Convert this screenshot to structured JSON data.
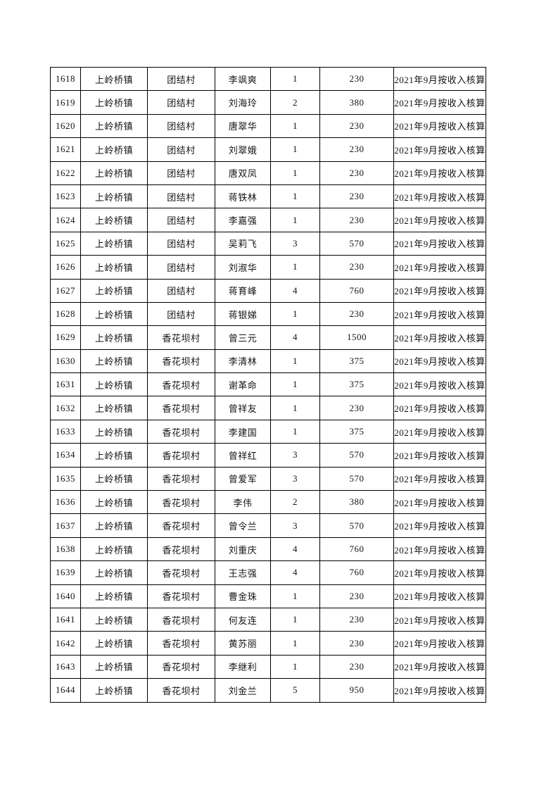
{
  "page": {
    "background_color": "#ffffff",
    "text_color": "#141414",
    "table_border_color": "#000000"
  },
  "table": {
    "column_semantic_names": [
      "row-id-cell",
      "town-cell",
      "village-cell",
      "person-name-cell",
      "person-count-cell",
      "amount-cell",
      "note-cell"
    ],
    "rows": [
      [
        "1618",
        "上岭桥镇",
        "团结村",
        "李飒爽",
        "1",
        "230",
        "2021年9月按收入核算"
      ],
      [
        "1619",
        "上岭桥镇",
        "团结村",
        "刘海玲",
        "2",
        "380",
        "2021年9月按收入核算"
      ],
      [
        "1620",
        "上岭桥镇",
        "团结村",
        "唐翠华",
        "1",
        "230",
        "2021年9月按收入核算"
      ],
      [
        "1621",
        "上岭桥镇",
        "团结村",
        "刘翠娥",
        "1",
        "230",
        "2021年9月按收入核算"
      ],
      [
        "1622",
        "上岭桥镇",
        "团结村",
        "唐双凤",
        "1",
        "230",
        "2021年9月按收入核算"
      ],
      [
        "1623",
        "上岭桥镇",
        "团结村",
        "蒋铁林",
        "1",
        "230",
        "2021年9月按收入核算"
      ],
      [
        "1624",
        "上岭桥镇",
        "团结村",
        "李嘉强",
        "1",
        "230",
        "2021年9月按收入核算"
      ],
      [
        "1625",
        "上岭桥镇",
        "团结村",
        "吴莉飞",
        "3",
        "570",
        "2021年9月按收入核算"
      ],
      [
        "1626",
        "上岭桥镇",
        "团结村",
        "刘淑华",
        "1",
        "230",
        "2021年9月按收入核算"
      ],
      [
        "1627",
        "上岭桥镇",
        "团结村",
        "蒋育峰",
        "4",
        "760",
        "2021年9月按收入核算"
      ],
      [
        "1628",
        "上岭桥镇",
        "团结村",
        "蒋银娣",
        "1",
        "230",
        "2021年9月按收入核算"
      ],
      [
        "1629",
        "上岭桥镇",
        "香花坝村",
        "曾三元",
        "4",
        "1500",
        "2021年9月按收入核算"
      ],
      [
        "1630",
        "上岭桥镇",
        "香花坝村",
        "李清林",
        "1",
        "375",
        "2021年9月按收入核算"
      ],
      [
        "1631",
        "上岭桥镇",
        "香花坝村",
        "谢革命",
        "1",
        "375",
        "2021年9月按收入核算"
      ],
      [
        "1632",
        "上岭桥镇",
        "香花坝村",
        "曾祥友",
        "1",
        "230",
        "2021年9月按收入核算"
      ],
      [
        "1633",
        "上岭桥镇",
        "香花坝村",
        "李建国",
        "1",
        "375",
        "2021年9月按收入核算"
      ],
      [
        "1634",
        "上岭桥镇",
        "香花坝村",
        "曾祥红",
        "3",
        "570",
        "2021年9月按收入核算"
      ],
      [
        "1635",
        "上岭桥镇",
        "香花坝村",
        "曾爱军",
        "3",
        "570",
        "2021年9月按收入核算"
      ],
      [
        "1636",
        "上岭桥镇",
        "香花坝村",
        "李伟",
        "2",
        "380",
        "2021年9月按收入核算"
      ],
      [
        "1637",
        "上岭桥镇",
        "香花坝村",
        "曾令兰",
        "3",
        "570",
        "2021年9月按收入核算"
      ],
      [
        "1638",
        "上岭桥镇",
        "香花坝村",
        "刘重庆",
        "4",
        "760",
        "2021年9月按收入核算"
      ],
      [
        "1639",
        "上岭桥镇",
        "香花坝村",
        "王志强",
        "4",
        "760",
        "2021年9月按收入核算"
      ],
      [
        "1640",
        "上岭桥镇",
        "香花坝村",
        "曹金珠",
        "1",
        "230",
        "2021年9月按收入核算"
      ],
      [
        "1641",
        "上岭桥镇",
        "香花坝村",
        "何友连",
        "1",
        "230",
        "2021年9月按收入核算"
      ],
      [
        "1642",
        "上岭桥镇",
        "香花坝村",
        "黄苏丽",
        "1",
        "230",
        "2021年9月按收入核算"
      ],
      [
        "1643",
        "上岭桥镇",
        "香花坝村",
        "李继利",
        "1",
        "230",
        "2021年9月按收入核算"
      ],
      [
        "1644",
        "上岭桥镇",
        "香花坝村",
        "刘金兰",
        "5",
        "950",
        "2021年9月按收入核算"
      ]
    ]
  }
}
